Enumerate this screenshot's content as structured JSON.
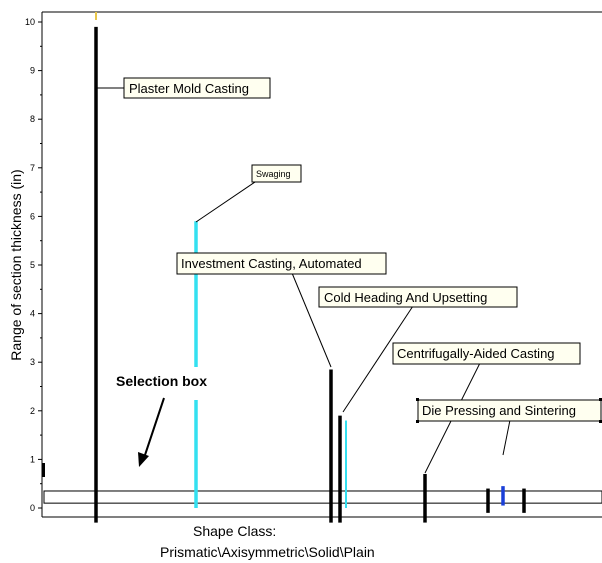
{
  "chart_data": {
    "type": "range",
    "ylabel": "Range of section thickness (in)",
    "ylim": [
      0,
      10
    ],
    "yticks": [
      "0",
      "1",
      "2",
      "3",
      "4",
      "5",
      "6",
      "7",
      "8",
      "9",
      "10"
    ],
    "xlabel_line1": "Shape Class:",
    "xlabel_line2": "Prismatic\\Axisymmetric\\Solid\\Plain",
    "grid": false,
    "series": [
      {
        "label": "Plaster Mold Casting",
        "min": -0.3,
        "max": 9.9,
        "color": "#000000"
      },
      {
        "label": "Swaging",
        "min": 0.0,
        "max": 5.9,
        "color": "#33e0f0"
      },
      {
        "label": "Investment Casting, Automated",
        "min": -0.3,
        "max": 2.85,
        "color": "#000000"
      },
      {
        "label": "Cold Heading And Upsetting",
        "min": -0.3,
        "max": 1.9,
        "color": "#000000"
      },
      {
        "label": "",
        "min": 0.0,
        "max": 1.8,
        "color": "#33e0f0"
      },
      {
        "label": "Centrifugally-Aided Casting",
        "min": -0.3,
        "max": 0.7,
        "color": "#000000"
      },
      {
        "label": "",
        "min": -0.1,
        "max": 0.4,
        "color": "#000000"
      },
      {
        "label": "Die Pressing and Sintering",
        "min": 0.05,
        "max": 0.45,
        "color": "#1a3fd8"
      },
      {
        "label": "",
        "min": -0.1,
        "max": 0.4,
        "color": "#000000"
      }
    ],
    "selection_box": {
      "label": "Selection box",
      "min": 0.1,
      "max": 0.35
    }
  }
}
